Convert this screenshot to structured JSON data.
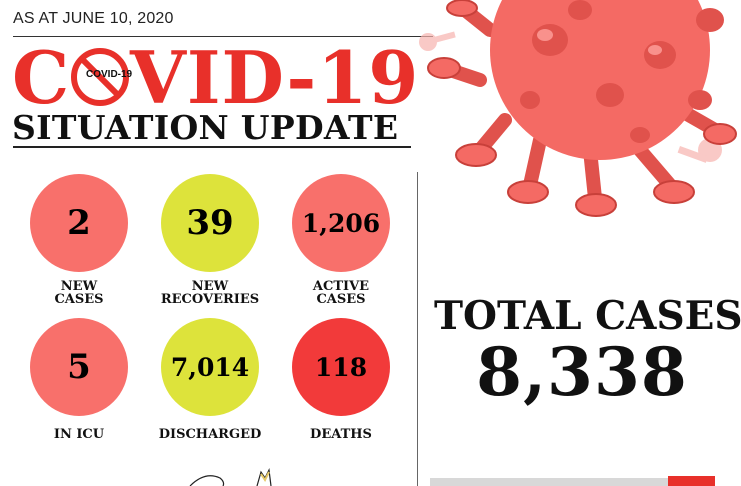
{
  "header": {
    "date_text": "AS AT JUNE 10, 2020",
    "title_first_letter": "C",
    "title_rest": "VID-19",
    "logo_text": "COVID-19",
    "subtitle": "SITUATION UPDATE"
  },
  "stats": {
    "new_cases": {
      "value": "2",
      "label_line1": "NEW",
      "label_line2": "CASES",
      "color": "#f8706b"
    },
    "new_recoveries": {
      "value": "39",
      "label_line1": "NEW",
      "label_line2": "RECOVERIES",
      "color": "#dde33b"
    },
    "active_cases": {
      "value": "1,206",
      "label_line1": "ACTIVE",
      "label_line2": "CASES",
      "color": "#f8706b"
    },
    "in_icu": {
      "value": "5",
      "label": "IN ICU",
      "color": "#f8706b"
    },
    "discharged": {
      "value": "7,014",
      "label": "DISCHARGED",
      "color": "#dde33b"
    },
    "deaths": {
      "value": "118",
      "label": "DEATHS",
      "color": "#f23a3a"
    }
  },
  "total": {
    "label": "TOTAL CASES",
    "value": "8,338"
  },
  "colors": {
    "accent_red": "#e8302a",
    "virus_body": "#f46a64",
    "virus_dark": "#e0524c"
  },
  "icons": {
    "virus": "coronavirus-illustration-icon",
    "no_sign": "prohibition-sign-icon"
  }
}
